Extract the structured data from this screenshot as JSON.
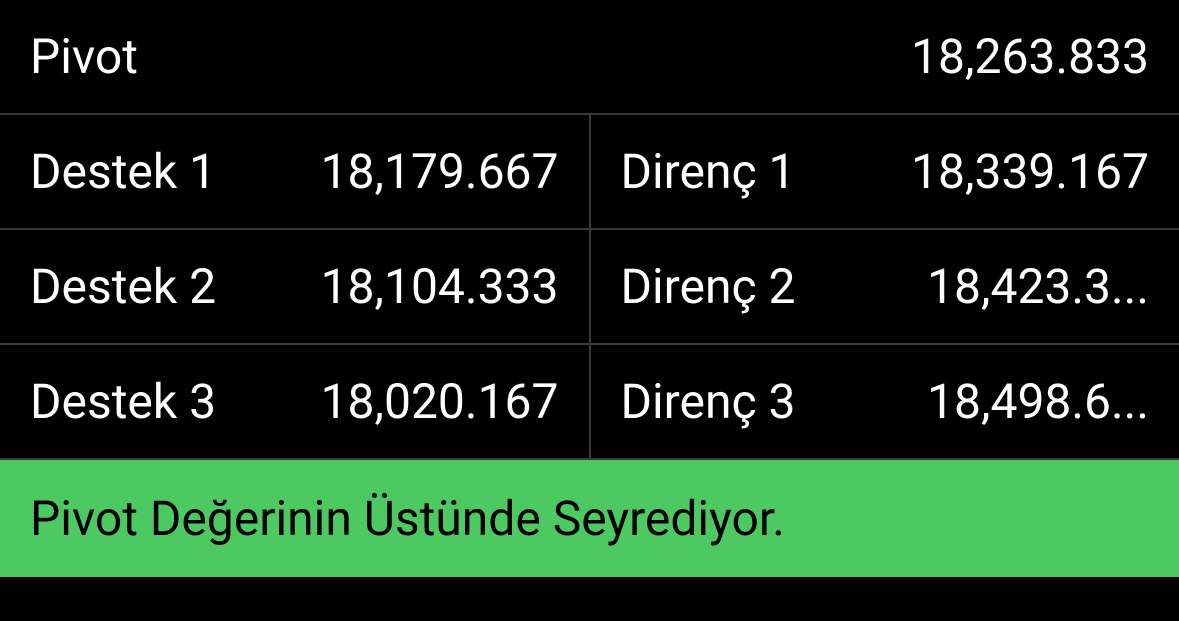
{
  "pivot": {
    "label": "Pivot",
    "value": "18,263.833"
  },
  "support": {
    "rows": [
      {
        "label": "Destek 1",
        "value": "18,179.667"
      },
      {
        "label": "Destek 2",
        "value": "18,104.333"
      },
      {
        "label": "Destek 3",
        "value": "18,020.167"
      }
    ]
  },
  "resistance": {
    "rows": [
      {
        "label": "Direnç 1",
        "value": "18,339.167"
      },
      {
        "label": "Direnç 2",
        "value": "18,423.3..."
      },
      {
        "label": "Direnç 3",
        "value": "18,498.6..."
      }
    ]
  },
  "status": {
    "text": "Pivot Değerinin Üstünde Seyrediyor.",
    "background_color": "#4dc961",
    "text_color": "#000000"
  },
  "styling": {
    "background_color": "#000000",
    "text_color": "#ffffff",
    "border_color": "#3a3a3a",
    "font_size_pt": 48,
    "font_weight": 400
  }
}
